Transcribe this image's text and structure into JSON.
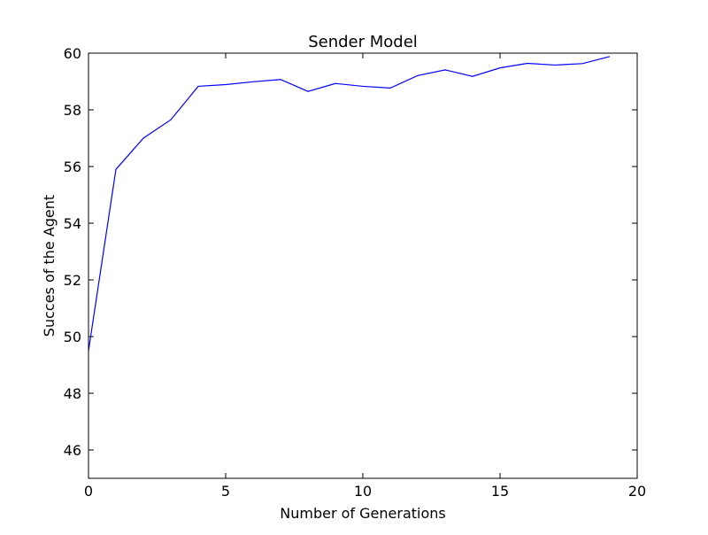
{
  "chart_data": {
    "type": "line",
    "title": "Sender Model",
    "xlabel": "Number of Generations",
    "ylabel": "Succes of the Agent",
    "xlim": [
      0,
      20
    ],
    "ylim": [
      45,
      60
    ],
    "xticks": [
      0,
      5,
      10,
      15,
      20
    ],
    "yticks": [
      46,
      48,
      50,
      52,
      54,
      56,
      58,
      60
    ],
    "grid": false,
    "series": [
      {
        "color": "#0000ff",
        "x": [
          0,
          1,
          2,
          3,
          4,
          5,
          6,
          7,
          8,
          9,
          10,
          11,
          12,
          13,
          14,
          15,
          16,
          17,
          18,
          19
        ],
        "values": [
          49.5,
          55.9,
          57.0,
          57.65,
          58.83,
          58.89,
          58.99,
          59.07,
          58.65,
          58.93,
          58.83,
          58.77,
          59.21,
          59.41,
          59.18,
          59.48,
          59.64,
          59.58,
          59.63,
          59.88
        ]
      }
    ]
  }
}
